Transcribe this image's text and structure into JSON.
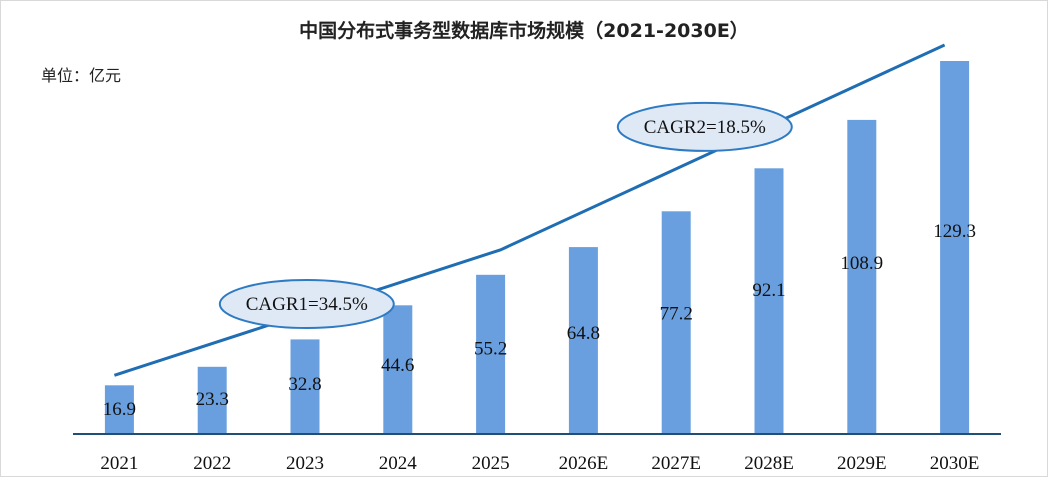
{
  "chart_data": {
    "type": "bar",
    "title": "中国分布式事务型数据库市场规模（2021-2030E）",
    "unit_label": "单位：亿元",
    "categories": [
      "2021",
      "2022",
      "2023",
      "2024",
      "2025",
      "2026E",
      "2027E",
      "2028E",
      "2029E",
      "2030E"
    ],
    "values": [
      16.9,
      23.3,
      32.8,
      44.6,
      55.2,
      64.8,
      77.2,
      92.1,
      108.9,
      129.3
    ],
    "data_labels": [
      "16.9",
      "23.3",
      "32.8",
      "44.6",
      "55.2",
      "64.8",
      "77.2",
      "92.1",
      "108.9",
      "129.3"
    ],
    "ylim": [
      0,
      130
    ],
    "grid": false,
    "legend": "none",
    "colors": {
      "bar": "#6a9fdf",
      "trend_line": "#1f6db3",
      "annotation_fill": "#dfe9f6",
      "annotation_stroke": "#2e7bc4",
      "axis": "#1f4e79"
    },
    "annotations": [
      {
        "text": "CAGR1=34.5%",
        "from": "2021",
        "to": "2025"
      },
      {
        "text": "CAGR2=18.5%",
        "from": "2025",
        "to": "2030E"
      }
    ]
  }
}
